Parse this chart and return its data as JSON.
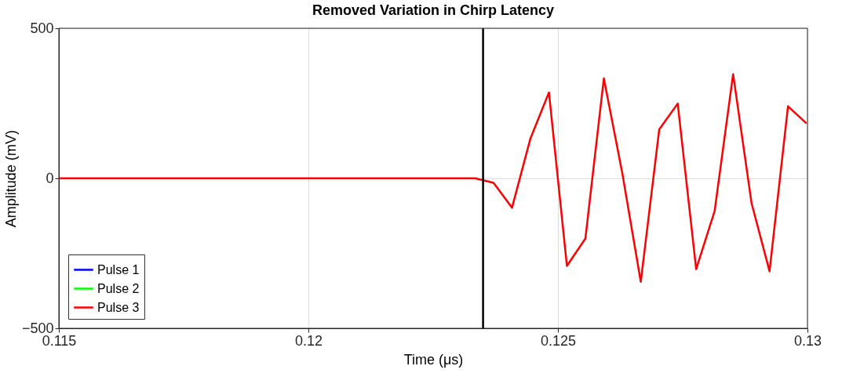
{
  "chart_data": {
    "type": "line",
    "title": "Removed Variation in Chirp Latency",
    "xlabel": "Time (μs)",
    "ylabel": "Amplitude (mV)",
    "x": [
      0.115,
      0.11574,
      0.11648,
      0.11722,
      0.11796,
      0.1187,
      0.11944,
      0.12018,
      0.12092,
      0.12166,
      0.1224,
      0.12297,
      0.12334,
      0.12371,
      0.12408,
      0.12445,
      0.12482,
      0.12518,
      0.12555,
      0.12592,
      0.12629,
      0.12666,
      0.12703,
      0.1274,
      0.12777,
      0.12814,
      0.12851,
      0.12888,
      0.12924,
      0.12961,
      0.12998
    ],
    "series": [
      {
        "name": "Pulse 1",
        "color": "#0000ff",
        "values": [
          null,
          null,
          null,
          null,
          null,
          null,
          null,
          null,
          null,
          null,
          null,
          null,
          null,
          null,
          null,
          null,
          null,
          null,
          null,
          null,
          null,
          null,
          null,
          null,
          null,
          null,
          null,
          null,
          null,
          null,
          null
        ]
      },
      {
        "name": "Pulse 2",
        "color": "#00ff00",
        "values": [
          null,
          null,
          null,
          null,
          null,
          null,
          null,
          null,
          null,
          null,
          null,
          null,
          null,
          null,
          null,
          null,
          null,
          null,
          null,
          null,
          null,
          null,
          null,
          null,
          null,
          null,
          null,
          null,
          null,
          null,
          null
        ]
      },
      {
        "name": "Pulse 3",
        "color": "#ff0000",
        "values": [
          0,
          0,
          0,
          0,
          0,
          0,
          0,
          0,
          0,
          0,
          0,
          0,
          0,
          -15,
          -98,
          133,
          286,
          -292,
          -201,
          333,
          17,
          -345,
          163,
          249,
          -303,
          -109,
          347,
          -83,
          -310,
          240,
          183
        ]
      }
    ],
    "xlim": [
      0.115,
      0.13
    ],
    "xticks": [
      0.115,
      0.12,
      0.125,
      0.13
    ],
    "ylim": [
      -500,
      500
    ],
    "yticks": [
      -500,
      0,
      500
    ],
    "ref_lines": [
      {
        "axis": "x",
        "value": 0.1235,
        "color": "#000000"
      }
    ],
    "grid": true,
    "legend": "bottom left",
    "marker": "none",
    "line_style": "solid"
  }
}
